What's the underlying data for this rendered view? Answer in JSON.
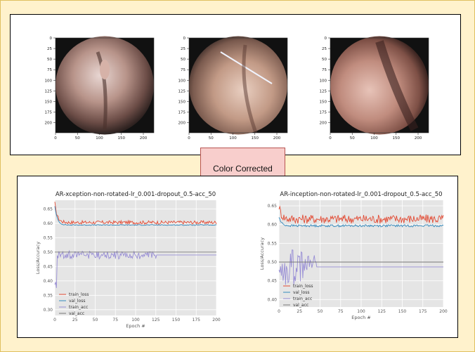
{
  "label": "Color Corrected",
  "images": {
    "y_ticks": [
      "0",
      "25",
      "50",
      "75",
      "100",
      "125",
      "150",
      "175",
      "200"
    ],
    "x_ticks": [
      "0",
      "50",
      "100",
      "150",
      "200"
    ],
    "panels": [
      {
        "desc_icon": "endoscopy-image-1"
      },
      {
        "desc_icon": "endoscopy-image-2"
      },
      {
        "desc_icon": "endoscopy-image-3"
      }
    ]
  },
  "chart_data": [
    {
      "type": "line",
      "title": "AR-xception-non-rotated-lr_0.001-dropout_0.5-acc_50",
      "xlabel": "Epoch #",
      "ylabel": "Loss/Accuracy",
      "xlim": [
        0,
        200
      ],
      "ylim": [
        0.28,
        0.68
      ],
      "x_ticks": [
        0,
        25,
        50,
        75,
        100,
        125,
        150,
        175,
        200
      ],
      "y_ticks": [
        0.3,
        0.35,
        0.4,
        0.45,
        0.5,
        0.55,
        0.6,
        0.65
      ],
      "grid": true,
      "legend": "bottom-left",
      "series": [
        {
          "name": "train_loss",
          "color": "#e24a33",
          "base": 0.603,
          "start": 0.67,
          "noise": 0.006
        },
        {
          "name": "val_loss",
          "color": "#348abd",
          "base": 0.594,
          "start": 0.66,
          "noise": 0.0015
        },
        {
          "name": "train_acc",
          "color": "#988ed5",
          "base": 0.49,
          "start": 0.38,
          "noise": 0.012,
          "band_end": 125
        },
        {
          "name": "val_acc",
          "color": "#777777",
          "base": 0.5,
          "start": 0.5,
          "noise": 0.0
        }
      ]
    },
    {
      "type": "line",
      "title": "AR-inception-non-rotated-lr_0.001-dropout_0.5-acc_50",
      "xlabel": "Epoch #",
      "ylabel": "Loss/Accuracy",
      "xlim": [
        0,
        200
      ],
      "ylim": [
        0.38,
        0.665
      ],
      "x_ticks": [
        0,
        25,
        50,
        75,
        100,
        125,
        150,
        175,
        200
      ],
      "y_ticks": [
        0.4,
        0.45,
        0.5,
        0.55,
        0.6,
        0.65
      ],
      "grid": true,
      "legend": "bottom-left",
      "series": [
        {
          "name": "train_loss",
          "color": "#e24a33",
          "base": 0.615,
          "start": 0.65,
          "noise": 0.012
        },
        {
          "name": "val_loss",
          "color": "#348abd",
          "base": 0.597,
          "start": 0.62,
          "noise": 0.003
        },
        {
          "name": "train_acc",
          "color": "#988ed5",
          "base": 0.487,
          "start": 0.46,
          "noise": 0.04,
          "band_end": 45
        },
        {
          "name": "val_acc",
          "color": "#777777",
          "base": 0.5,
          "start": 0.5,
          "noise": 0.0
        }
      ]
    }
  ]
}
